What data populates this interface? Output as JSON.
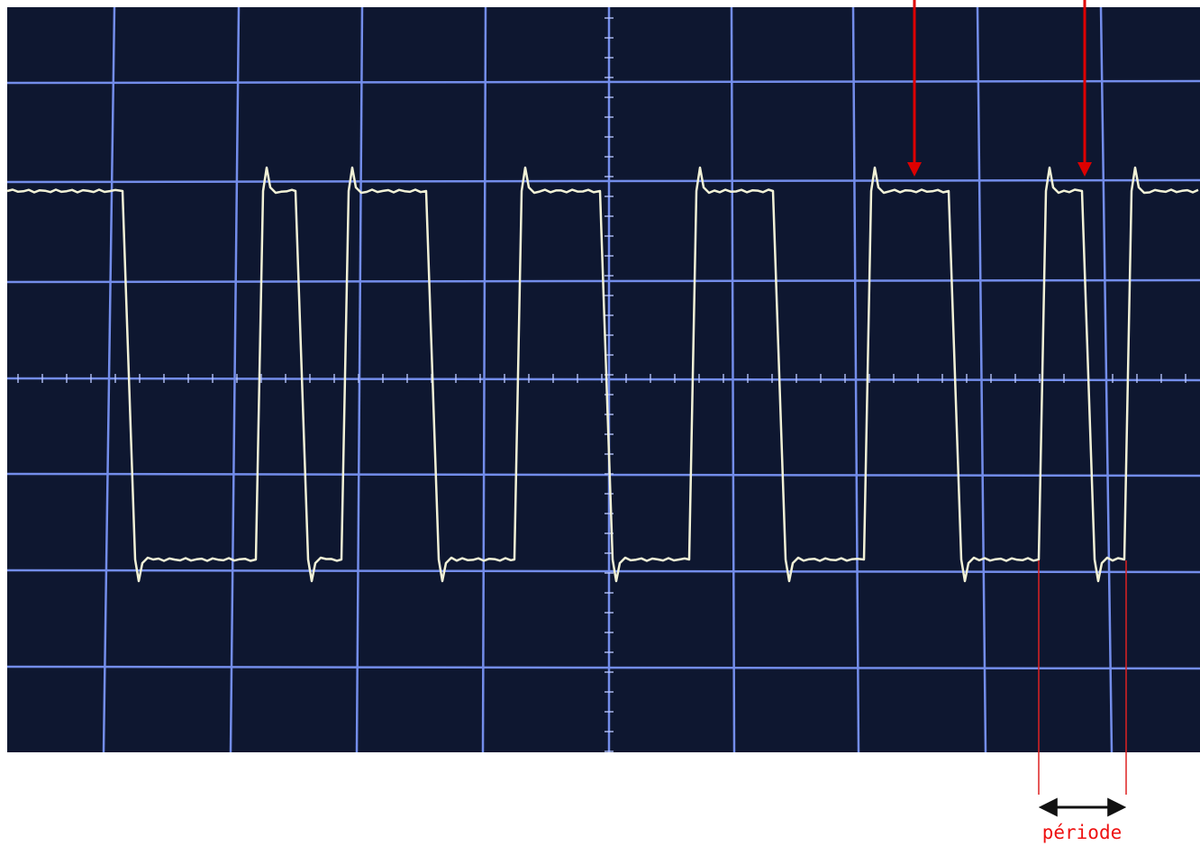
{
  "annotation": {
    "label": "période",
    "color": "#ee1111"
  },
  "screen": {
    "background": "#0e1730",
    "grid_color": "#7f9aff",
    "trace_color": "#f1f1d6",
    "grid_divisions": {
      "horizontal": 10,
      "vertical": 8
    }
  },
  "icons": [
    "down-arrow-icon",
    "double-arrow-icon"
  ]
}
